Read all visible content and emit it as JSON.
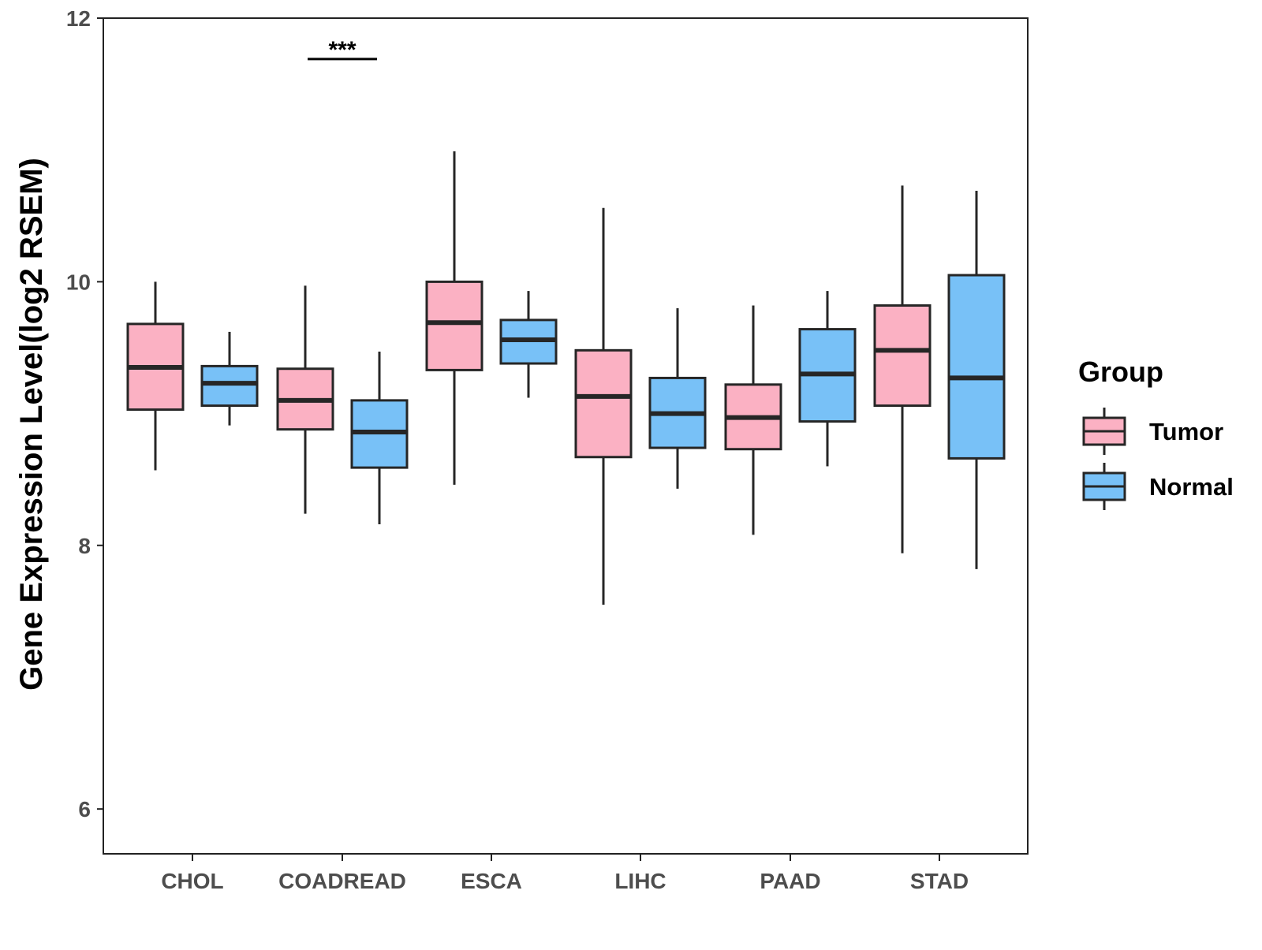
{
  "chart_data": {
    "type": "box",
    "title": "",
    "xlabel": "",
    "ylabel": "Gene Expression Level(log2 RSEM)",
    "ylim": [
      5.66,
      12
    ],
    "yticks": [
      6,
      8,
      10,
      12
    ],
    "grid": false,
    "legend": {
      "title": "Group",
      "position": "right",
      "entries": [
        "Tumor",
        "Normal"
      ]
    },
    "categories": [
      "CHOL",
      "COADREAD",
      "ESCA",
      "LIHC",
      "PAAD",
      "STAD"
    ],
    "series": [
      {
        "name": "Tumor",
        "color": "#FBB1C3",
        "boxes": [
          {
            "category": "CHOL",
            "min": 8.57,
            "q1": 9.03,
            "median": 9.35,
            "q3": 9.68,
            "max": 10.0
          },
          {
            "category": "COADREAD",
            "min": 8.24,
            "q1": 8.88,
            "median": 9.1,
            "q3": 9.34,
            "max": 9.97
          },
          {
            "category": "ESCA",
            "min": 8.46,
            "q1": 9.33,
            "median": 9.69,
            "q3": 10.0,
            "max": 10.99
          },
          {
            "category": "LIHC",
            "min": 7.55,
            "q1": 8.67,
            "median": 9.13,
            "q3": 9.48,
            "max": 10.56
          },
          {
            "category": "PAAD",
            "min": 8.08,
            "q1": 8.73,
            "median": 8.97,
            "q3": 9.22,
            "max": 9.82
          },
          {
            "category": "STAD",
            "min": 7.94,
            "q1": 9.06,
            "median": 9.48,
            "q3": 9.82,
            "max": 10.73
          }
        ]
      },
      {
        "name": "Normal",
        "color": "#78C1F7",
        "boxes": [
          {
            "category": "CHOL",
            "min": 8.91,
            "q1": 9.06,
            "median": 9.23,
            "q3": 9.36,
            "max": 9.62
          },
          {
            "category": "COADREAD",
            "min": 8.16,
            "q1": 8.59,
            "median": 8.86,
            "q3": 9.1,
            "max": 9.47
          },
          {
            "category": "ESCA",
            "min": 9.12,
            "q1": 9.38,
            "median": 9.56,
            "q3": 9.71,
            "max": 9.93
          },
          {
            "category": "LIHC",
            "min": 8.43,
            "q1": 8.74,
            "median": 9.0,
            "q3": 9.27,
            "max": 9.8
          },
          {
            "category": "PAAD",
            "min": 8.6,
            "q1": 8.94,
            "median": 9.3,
            "q3": 9.64,
            "max": 9.93
          },
          {
            "category": "STAD",
            "min": 7.82,
            "q1": 8.66,
            "median": 9.27,
            "q3": 10.05,
            "max": 10.69
          }
        ]
      }
    ],
    "annotations": [
      {
        "text": "***",
        "category": "COADREAD",
        "y": 11.69
      }
    ]
  }
}
